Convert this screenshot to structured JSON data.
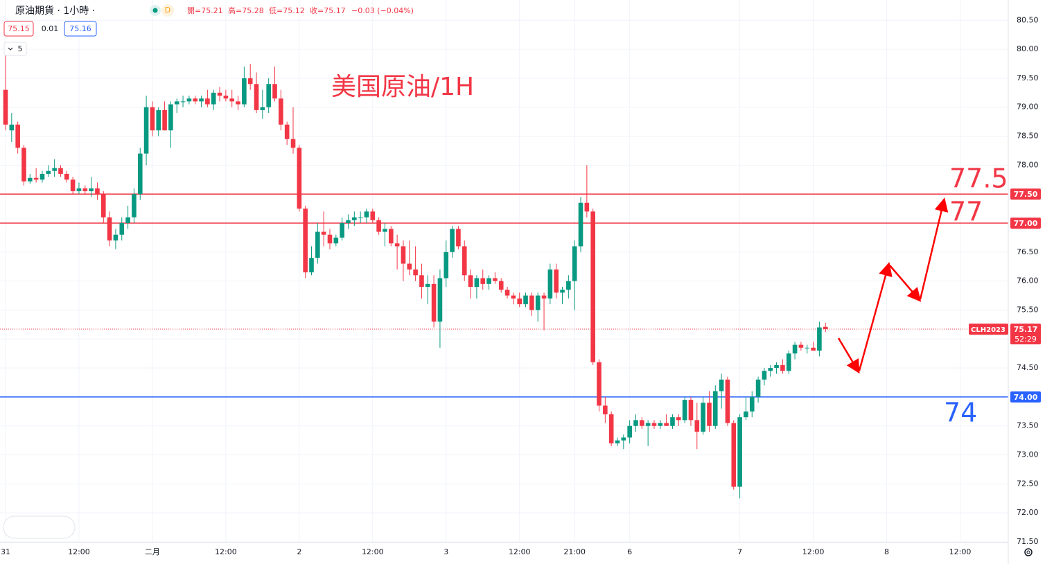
{
  "header": {
    "symbol": "原油期貨 · 1小時 ·",
    "badge": "D",
    "open": "開=75.21",
    "high": "高=75.28",
    "low": "低=75.12",
    "close": "收=75.17",
    "change": "−0.03 (−0.04%)",
    "bid": "75.15",
    "spread": "0.01",
    "ask": "75.16",
    "indicator": "5"
  },
  "chart_data": {
    "type": "candlestick",
    "annotation": "美国原油/1H",
    "up_color": "#089981",
    "down_color": "#f23645",
    "symbol": "CLH2023",
    "countdown": "52:29",
    "ylim": [
      71.5,
      80.85
    ],
    "yticks": [
      {
        "value": 71.5,
        "label": "71.50"
      },
      {
        "value": 72,
        "label": "72.00"
      },
      {
        "value": 72.5,
        "label": "72.50"
      },
      {
        "value": 73,
        "label": "73.00"
      },
      {
        "value": 73.5,
        "label": "73.50"
      },
      {
        "value": 74,
        "label": "74.00"
      },
      {
        "value": 74.5,
        "label": "74.50"
      },
      {
        "value": 75,
        "label": "75.00"
      },
      {
        "value": 75.5,
        "label": "75.50"
      },
      {
        "value": 76,
        "label": "76.00"
      },
      {
        "value": 76.5,
        "label": "76.50"
      },
      {
        "value": 77,
        "label": "77.00"
      },
      {
        "value": 77.5,
        "label": "77.50"
      },
      {
        "value": 78,
        "label": "78.00"
      },
      {
        "value": 78.5,
        "label": "78.50"
      },
      {
        "value": 79,
        "label": "79.00"
      },
      {
        "value": 79.5,
        "label": "79.50"
      },
      {
        "value": 80,
        "label": "80.00"
      },
      {
        "value": 80.5,
        "label": "80.50"
      }
    ],
    "hlines": [
      {
        "value": 77.5,
        "color": "#f23645",
        "label": "77.5",
        "axis_label": "77.50"
      },
      {
        "value": 77,
        "color": "#f23645",
        "label": "77",
        "axis_label": "77.00"
      },
      {
        "value": 74,
        "color": "#2962ff",
        "label": "74",
        "axis_label": "74.00"
      }
    ],
    "categories": [
      "31",
      null,
      null,
      null,
      null,
      null,
      null,
      null,
      null,
      null,
      null,
      null,
      "12:00",
      null,
      null,
      null,
      null,
      null,
      null,
      null,
      null,
      null,
      null,
      null,
      "二月",
      null,
      null,
      null,
      null,
      null,
      null,
      null,
      null,
      null,
      null,
      null,
      "12:00",
      null,
      null,
      null,
      null,
      null,
      null,
      null,
      null,
      null,
      null,
      null,
      "2",
      null,
      null,
      null,
      null,
      null,
      null,
      null,
      null,
      null,
      null,
      null,
      "12:00",
      null,
      null,
      null,
      null,
      null,
      null,
      null,
      null,
      null,
      null,
      null,
      "3",
      null,
      null,
      null,
      null,
      null,
      null,
      null,
      null,
      null,
      null,
      null,
      "12:00",
      null,
      null,
      null,
      null,
      null,
      null,
      null,
      null,
      "21:00",
      null,
      null,
      null,
      null,
      null,
      null,
      null,
      null,
      "6",
      null,
      null,
      null,
      null,
      null,
      null,
      null,
      null,
      null,
      null,
      null,
      null,
      null,
      null,
      null,
      null,
      null,
      "7",
      null,
      null,
      null,
      null,
      null,
      null,
      null,
      null,
      null,
      null,
      null,
      "12:00",
      null,
      null,
      null,
      null,
      null,
      null,
      null,
      null,
      null,
      null,
      null,
      "8",
      null,
      null,
      null,
      null,
      null,
      null,
      null,
      null,
      null,
      null,
      null,
      "12:00",
      null,
      null,
      null,
      null,
      null
    ],
    "open": [
      79.3,
      78.6,
      78.7,
      78.3,
      77.72,
      77.78,
      77.75,
      77.85,
      77.9,
      77.95,
      77.85,
      77.75,
      77.55,
      77.6,
      77.55,
      77.6,
      77.5,
      77.1,
      76.7,
      76.8,
      77.0,
      77.1,
      77.5,
      78.2,
      79.0,
      78.6,
      78.95,
      78.6,
      79.05,
      79.1,
      79.1,
      79.15,
      79.1,
      79.15,
      79.05,
      79.25,
      79.2,
      79.15,
      79.1,
      79.05,
      79.5,
      79.4,
      78.95,
      79.0,
      79.4,
      79.15,
      78.7,
      78.45,
      78.3,
      77.25,
      76.15,
      76.4,
      76.85,
      76.8,
      76.65,
      76.75,
      77.0,
      77.05,
      77.1,
      77.1,
      77.2,
      77.05,
      76.85,
      76.9,
      76.65,
      76.6,
      76.3,
      76.2,
      76.1,
      75.9,
      75.95,
      75.3,
      76.05,
      76.5,
      76.9,
      76.6,
      76.1,
      75.9,
      76.05,
      75.95,
      76.05,
      76.0,
      75.85,
      75.75,
      75.7,
      75.6,
      75.75,
      75.5,
      75.75,
      75.7,
      76.2,
      75.8,
      75.85,
      76.0,
      76.6,
      77.35,
      77.2,
      74.6,
      73.85,
      73.7,
      73.2,
      73.25,
      73.3,
      73.5,
      73.6,
      73.5,
      73.55,
      73.5,
      73.55,
      73.5,
      73.65,
      73.6,
      73.95,
      73.6,
      73.4,
      73.9,
      73.5,
      74.1,
      74.3,
      73.55,
      72.45,
      73.65,
      73.75,
      74.0,
      74.3,
      74.45,
      74.5,
      74.55,
      74.45,
      74.75,
      74.9,
      74.85,
      74.85,
      74.8,
      75.21,
      null,
      null,
      null,
      null,
      null,
      null,
      null,
      null,
      null,
      null,
      null,
      null,
      null,
      null,
      null,
      null,
      null,
      null,
      null,
      null,
      null,
      null,
      null,
      null,
      null,
      null,
      null
    ],
    "high": [
      79.9,
      78.9,
      78.75,
      78.35,
      77.85,
      77.95,
      77.9,
      78.0,
      78.1,
      78.0,
      77.9,
      77.8,
      77.7,
      77.65,
      77.8,
      77.7,
      77.55,
      77.2,
      76.9,
      77.1,
      77.3,
      77.6,
      78.3,
      79.2,
      79.1,
      79.0,
      79.1,
      79.1,
      79.15,
      79.2,
      79.2,
      79.2,
      79.2,
      79.3,
      79.3,
      79.35,
      79.3,
      79.3,
      79.2,
      79.7,
      79.75,
      79.6,
      79.3,
      79.5,
      79.7,
      79.3,
      78.75,
      79.0,
      78.35,
      77.3,
      76.6,
      77.0,
      77.2,
      76.9,
      76.8,
      77.1,
      77.15,
      77.2,
      77.2,
      77.25,
      77.25,
      77.1,
      77.0,
      76.95,
      76.8,
      76.7,
      76.7,
      76.6,
      76.3,
      76.1,
      76.1,
      76.2,
      76.7,
      76.95,
      76.95,
      76.7,
      76.2,
      76.1,
      76.2,
      76.1,
      76.15,
      76.05,
      75.9,
      75.8,
      75.8,
      75.8,
      75.8,
      75.8,
      75.8,
      76.3,
      76.3,
      75.9,
      76.1,
      76.7,
      77.45,
      78.0,
      77.25,
      74.65,
      74.0,
      73.75,
      73.3,
      73.35,
      73.6,
      73.7,
      73.65,
      73.6,
      73.6,
      73.6,
      73.7,
      73.7,
      73.7,
      74.0,
      74.0,
      73.9,
      74.0,
      74.1,
      74.2,
      74.4,
      74.35,
      73.6,
      73.7,
      74.0,
      74.1,
      74.35,
      74.5,
      74.55,
      74.6,
      74.65,
      74.8,
      74.95,
      74.95,
      74.9,
      74.95,
      75.3,
      75.28,
      null,
      null,
      null,
      null,
      null,
      null,
      null,
      null,
      null,
      null,
      null,
      null,
      null,
      null,
      null,
      null,
      null,
      null,
      null,
      null,
      null,
      null,
      null,
      null,
      null,
      null,
      null
    ],
    "low": [
      78.6,
      78.4,
      78.2,
      77.65,
      77.68,
      77.7,
      77.7,
      77.8,
      77.8,
      77.8,
      77.7,
      77.5,
      77.5,
      77.5,
      77.45,
      77.4,
      77.0,
      76.6,
      76.55,
      76.7,
      76.9,
      77.0,
      77.4,
      78.0,
      78.5,
      78.5,
      78.6,
      78.3,
      78.9,
      79.0,
      79.05,
      79.05,
      79.0,
      79.0,
      78.95,
      79.1,
      79.1,
      79.0,
      78.95,
      79.0,
      79.3,
      78.9,
      78.8,
      78.9,
      79.1,
      78.6,
      78.35,
      78.2,
      77.2,
      76.05,
      76.1,
      76.3,
      76.6,
      76.55,
      76.6,
      76.7,
      76.9,
      76.95,
      77.0,
      77.0,
      77.0,
      76.8,
      76.6,
      76.6,
      76.2,
      76.0,
      76.1,
      76.0,
      75.7,
      75.6,
      75.2,
      74.85,
      75.9,
      76.4,
      76.55,
      76.0,
      75.7,
      75.7,
      75.85,
      75.85,
      75.95,
      75.8,
      75.7,
      75.6,
      75.55,
      75.55,
      75.4,
      75.3,
      75.15,
      75.6,
      75.7,
      75.6,
      75.7,
      75.5,
      76.5,
      77.1,
      74.55,
      73.75,
      73.55,
      73.15,
      73.15,
      73.1,
      73.2,
      73.4,
      73.45,
      73.15,
      73.45,
      73.45,
      73.5,
      73.45,
      73.5,
      73.55,
      73.5,
      73.1,
      73.35,
      73.4,
      73.45,
      73.8,
      73.5,
      72.4,
      72.25,
      73.6,
      73.65,
      73.9,
      74.2,
      74.35,
      74.4,
      74.4,
      74.4,
      74.65,
      74.8,
      74.75,
      74.8,
      74.7,
      75.12,
      null,
      null,
      null,
      null,
      null,
      null,
      null,
      null,
      null,
      null,
      null,
      null,
      null,
      null,
      null,
      null,
      null,
      null,
      null,
      null,
      null,
      null,
      null,
      null,
      null,
      null,
      null
    ],
    "close": [
      78.7,
      78.7,
      78.3,
      77.72,
      77.78,
      77.75,
      77.85,
      77.9,
      77.95,
      77.85,
      77.75,
      77.55,
      77.6,
      77.55,
      77.6,
      77.5,
      77.1,
      76.7,
      76.8,
      77.0,
      77.1,
      77.5,
      78.2,
      79.0,
      78.6,
      78.95,
      78.6,
      79.05,
      79.1,
      79.1,
      79.15,
      79.1,
      79.15,
      79.05,
      79.25,
      79.2,
      79.15,
      79.1,
      79.05,
      79.5,
      79.4,
      78.95,
      79.0,
      79.4,
      79.15,
      78.7,
      78.45,
      78.3,
      77.25,
      76.15,
      76.4,
      76.85,
      76.8,
      76.65,
      76.75,
      77.0,
      77.05,
      77.1,
      77.1,
      77.2,
      77.05,
      76.85,
      76.9,
      76.65,
      76.6,
      76.3,
      76.2,
      76.1,
      75.9,
      75.95,
      75.3,
      76.05,
      76.5,
      76.9,
      76.6,
      76.1,
      75.9,
      76.05,
      75.95,
      76.05,
      76.0,
      75.85,
      75.75,
      75.7,
      75.6,
      75.75,
      75.5,
      75.75,
      75.7,
      76.2,
      75.8,
      75.85,
      76.0,
      76.6,
      77.35,
      77.2,
      74.6,
      73.85,
      73.7,
      73.2,
      73.25,
      73.3,
      73.5,
      73.6,
      73.5,
      73.55,
      73.5,
      73.55,
      73.5,
      73.65,
      73.6,
      73.95,
      73.6,
      73.4,
      73.9,
      73.5,
      74.1,
      74.3,
      73.55,
      72.45,
      73.65,
      73.75,
      74.0,
      74.3,
      74.45,
      74.5,
      74.55,
      74.45,
      74.75,
      74.9,
      74.85,
      74.85,
      74.8,
      75.2,
      75.17,
      null,
      null,
      null,
      null,
      null,
      null,
      null,
      null,
      null,
      null,
      null,
      null,
      null,
      null,
      null,
      null,
      null,
      null,
      null,
      null,
      null,
      null,
      null,
      null,
      null,
      null,
      null
    ]
  }
}
